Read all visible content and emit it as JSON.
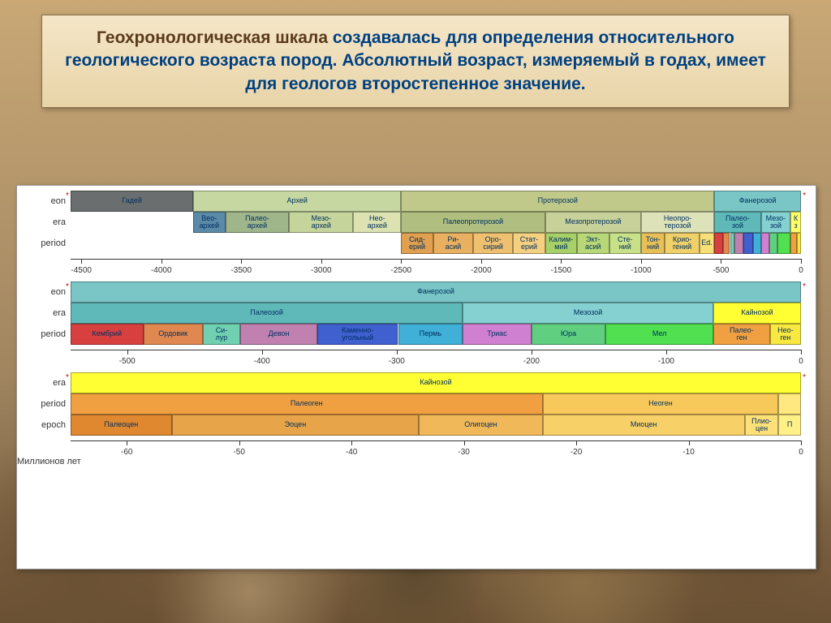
{
  "title": {
    "highlighted": "Геохронологическая шкала",
    "rest": " создавалась для определения относительного геологического возраста пород. Абсолютный возраст, измеряемый в годах, имеет для геологов второстепенное значение.",
    "highlight_color": "#5a3a1a",
    "body_color": "#004080",
    "fontsize": 21
  },
  "chart": {
    "background": "#ffffff",
    "axis_label": "Миллионов лет",
    "row_labels": {
      "eon": "eon",
      "era": "era",
      "period": "period",
      "epoch": "epoch"
    },
    "scales": [
      {
        "id": "precambrian",
        "range": [
          -4567,
          0
        ],
        "ticks": [
          -4500,
          -4000,
          -3500,
          -3000,
          -2500,
          -2000,
          -1500,
          -1000,
          -500,
          0
        ],
        "rows": [
          {
            "level": "eon",
            "blocks": [
              {
                "label": "Гадей",
                "start": -4567,
                "end": -3800,
                "color": "#6a6e6e"
              },
              {
                "label": "Архей",
                "start": -3800,
                "end": -2500,
                "color": "#c6d7a2"
              },
              {
                "label": "Протерозой",
                "start": -2500,
                "end": -542,
                "color": "#c0c98a"
              },
              {
                "label": "Фанерозой",
                "start": -542,
                "end": 0,
                "color": "#7ac6c6"
              }
            ]
          },
          {
            "level": "era",
            "blocks": [
              {
                "label": "Вео-\\nархей",
                "start": -3800,
                "end": -3600,
                "color": "#5b8aa8"
              },
              {
                "label": "Палео-\\nархей",
                "start": -3600,
                "end": -3200,
                "color": "#9fb58a"
              },
              {
                "label": "Мезо-\\nархей",
                "start": -3200,
                "end": -2800,
                "color": "#c4d49a"
              },
              {
                "label": "Нео-\\nархей",
                "start": -2800,
                "end": -2500,
                "color": "#dce3b0"
              },
              {
                "label": "Палеопротерозой",
                "start": -2500,
                "end": -1600,
                "color": "#b0bf7f"
              },
              {
                "label": "Мезопротерозой",
                "start": -1600,
                "end": -1000,
                "color": "#c8d19a"
              },
              {
                "label": "Неопро-\\nтерозой",
                "start": -1000,
                "end": -542,
                "color": "#dde2b8"
              },
              {
                "label": "Палео-\\nзой",
                "start": -542,
                "end": -251,
                "color": "#5fb9b9"
              },
              {
                "label": "Мезо-\\nзой",
                "start": -251,
                "end": -65,
                "color": "#85d0d0"
              },
              {
                "label": "К\\nз",
                "start": -65,
                "end": 0,
                "color": "#ffff66"
              }
            ]
          },
          {
            "level": "period",
            "blocks": [
              {
                "label": "Сид-\\nерий",
                "start": -2500,
                "end": -2300,
                "color": "#e0a050"
              },
              {
                "label": "Ри-\\nасий",
                "start": -2300,
                "end": -2050,
                "color": "#e8b060"
              },
              {
                "label": "Оро-\\nсирий",
                "start": -2050,
                "end": -1800,
                "color": "#efc070"
              },
              {
                "label": "Стат-\\nерий",
                "start": -1800,
                "end": -1600,
                "color": "#f5d080"
              },
              {
                "label": "Калим-\\nмий",
                "start": -1600,
                "end": -1400,
                "color": "#a8d068"
              },
              {
                "label": "Экт-\\nасий",
                "start": -1400,
                "end": -1200,
                "color": "#b8d878"
              },
              {
                "label": "Сте-\\nний",
                "start": -1200,
                "end": -1000,
                "color": "#c8e088"
              },
              {
                "label": "Тон-\\nний",
                "start": -1000,
                "end": -850,
                "color": "#e8c058"
              },
              {
                "label": "Крио-\\nгений",
                "start": -850,
                "end": -635,
                "color": "#f0d068"
              },
              {
                "label": "Ed.",
                "start": -635,
                "end": -542,
                "color": "#f8e078"
              },
              {
                "label": "",
                "start": -542,
                "end": -488,
                "color": "#d84040"
              },
              {
                "label": "",
                "start": -488,
                "end": -444,
                "color": "#e08850"
              },
              {
                "label": "",
                "start": -444,
                "end": -416,
                "color": "#70d0b0"
              },
              {
                "label": "",
                "start": -416,
                "end": -359,
                "color": "#c080b0"
              },
              {
                "label": "",
                "start": -359,
                "end": -299,
                "color": "#4060d0"
              },
              {
                "label": "",
                "start": -299,
                "end": -251,
                "color": "#40b0d8"
              },
              {
                "label": "",
                "start": -251,
                "end": -200,
                "color": "#d080d0"
              },
              {
                "label": "",
                "start": -200,
                "end": -145,
                "color": "#60d080"
              },
              {
                "label": "",
                "start": -145,
                "end": -65,
                "color": "#50e050"
              },
              {
                "label": "",
                "start": -65,
                "end": -23,
                "color": "#f0a040"
              },
              {
                "label": "",
                "start": -23,
                "end": 0,
                "color": "#f8e840"
              }
            ]
          }
        ]
      },
      {
        "id": "phanerozoic",
        "range": [
          -542,
          0
        ],
        "ticks": [
          -500,
          -400,
          -300,
          -200,
          -100,
          0
        ],
        "rows": [
          {
            "level": "eon",
            "blocks": [
              {
                "label": "Фанерозой",
                "start": -542,
                "end": 0,
                "color": "#7ac6c6"
              }
            ]
          },
          {
            "level": "era",
            "blocks": [
              {
                "label": "Палеозой",
                "start": -542,
                "end": -251,
                "color": "#5fb9b9"
              },
              {
                "label": "Мезозой",
                "start": -251,
                "end": -65,
                "color": "#85d0d0"
              },
              {
                "label": "Кайнозой",
                "start": -65,
                "end": 0,
                "color": "#ffff33"
              }
            ]
          },
          {
            "level": "period",
            "blocks": [
              {
                "label": "Кембрий",
                "start": -542,
                "end": -488,
                "color": "#d84040"
              },
              {
                "label": "Ордовик",
                "start": -488,
                "end": -444,
                "color": "#e08850"
              },
              {
                "label": "Си-\\nлур",
                "start": -444,
                "end": -416,
                "color": "#70d0b0"
              },
              {
                "label": "Девон",
                "start": -416,
                "end": -359,
                "color": "#c080b0"
              },
              {
                "label": "Каменно-\\nугольный",
                "start": -359,
                "end": -299,
                "color": "#4060d0"
              },
              {
                "label": "Пермь",
                "start": -299,
                "end": -251,
                "color": "#40b0d8"
              },
              {
                "label": "Триас",
                "start": -251,
                "end": -200,
                "color": "#d080d0"
              },
              {
                "label": "Юра",
                "start": -200,
                "end": -145,
                "color": "#60d080"
              },
              {
                "label": "Мел",
                "start": -145,
                "end": -65,
                "color": "#50e050"
              },
              {
                "label": "Палео-\\nген",
                "start": -65,
                "end": -23,
                "color": "#f0a040"
              },
              {
                "label": "Нео-\\nген",
                "start": -23,
                "end": 0,
                "color": "#f8e840"
              }
            ]
          }
        ]
      },
      {
        "id": "cenozoic",
        "range": [
          -65,
          0
        ],
        "ticks": [
          -60,
          -50,
          -40,
          -30,
          -20,
          -10,
          0
        ],
        "rows": [
          {
            "level": "era",
            "blocks": [
              {
                "label": "Кайнозой",
                "start": -65,
                "end": 0,
                "color": "#ffff33"
              }
            ]
          },
          {
            "level": "period",
            "blocks": [
              {
                "label": "Палеоген",
                "start": -65,
                "end": -23,
                "color": "#f0a040"
              },
              {
                "label": "Неоген",
                "start": -23,
                "end": -2,
                "color": "#f7c95a"
              },
              {
                "label": "",
                "start": -2,
                "end": 0,
                "color": "#ffe880"
              }
            ]
          },
          {
            "level": "epoch",
            "blocks": [
              {
                "label": "Палеоцен",
                "start": -65,
                "end": -56,
                "color": "#e08830"
              },
              {
                "label": "Эоцен",
                "start": -56,
                "end": -34,
                "color": "#e8a448"
              },
              {
                "label": "Олигоцен",
                "start": -34,
                "end": -23,
                "color": "#f0b858"
              },
              {
                "label": "Миоцен",
                "start": -23,
                "end": -5,
                "color": "#f8d068"
              },
              {
                "label": "Плио-\\nцен",
                "start": -5,
                "end": -2,
                "color": "#fde078"
              },
              {
                "label": "П",
                "start": -2,
                "end": 0,
                "color": "#fff088"
              }
            ]
          }
        ],
        "show_axis_label": true
      }
    ]
  }
}
